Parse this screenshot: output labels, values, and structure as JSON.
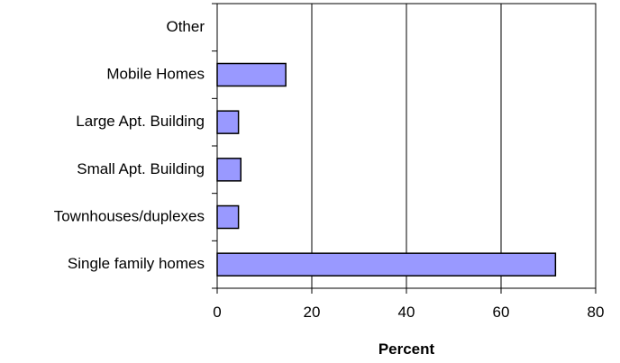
{
  "chart_data": {
    "type": "bar",
    "orientation": "horizontal",
    "categories": [
      "Other",
      "Mobile Homes",
      "Large Apt. Building",
      "Small Apt. Building",
      "Townhouses/duplexes",
      "Single family homes"
    ],
    "values": [
      0,
      14.5,
      4.5,
      5,
      4.5,
      71.5
    ],
    "xlabel": "Percent",
    "ylabel": "",
    "xlim": [
      0,
      80
    ],
    "xticks": [
      "0",
      "20",
      "40",
      "60",
      "80"
    ],
    "grid": "vertical",
    "bar_color": "#9999FF",
    "bar_edge_color": "#000000"
  }
}
